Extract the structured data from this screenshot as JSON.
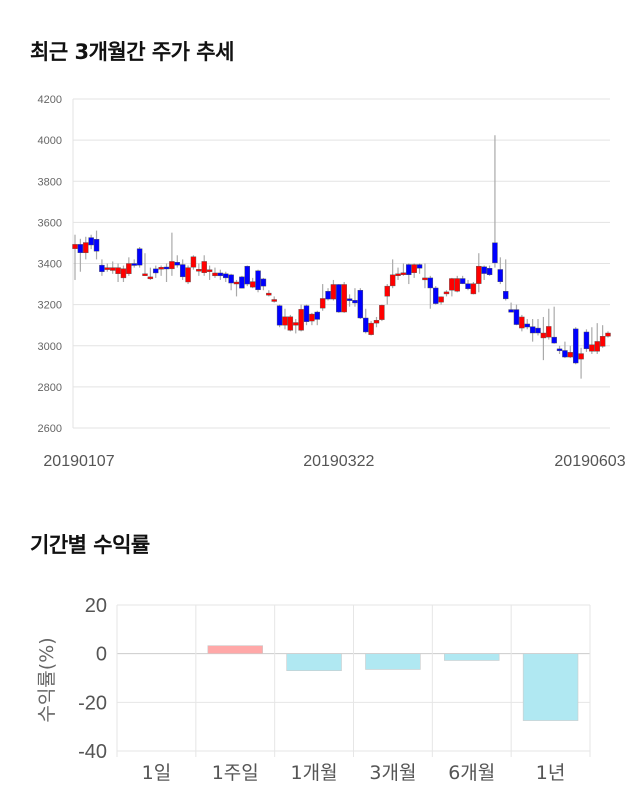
{
  "price_section": {
    "title": "최근 3개월간 주가 추세"
  },
  "returns_section": {
    "title": "기간별 수익률"
  },
  "colors": {
    "up": "#ff0000",
    "down": "#0000ff",
    "wick": "#aaaaaa",
    "bar_positive": "#ffa8a8",
    "bar_negative": "#b0e8f2",
    "grid": "#e3e3e3"
  },
  "chart_data": [
    {
      "type": "candlestick",
      "title": "최근 3개월간 주가 추세",
      "ylim": [
        2600,
        4200
      ],
      "yticks": [
        2600,
        2800,
        3000,
        3200,
        3400,
        3600,
        3800,
        4000,
        4200
      ],
      "xtick_labels": [
        "20190107",
        "20190322",
        "20190603"
      ],
      "grid": true,
      "ohlc": [
        [
          3472,
          3540,
          3320,
          3493
        ],
        [
          3493,
          3520,
          3360,
          3452
        ],
        [
          3452,
          3530,
          3420,
          3502
        ],
        [
          3526,
          3540,
          3470,
          3490
        ],
        [
          3518,
          3560,
          3420,
          3460
        ],
        [
          3392,
          3420,
          3340,
          3360
        ],
        [
          3380,
          3400,
          3360,
          3380
        ],
        [
          3366,
          3410,
          3350,
          3380
        ],
        [
          3350,
          3400,
          3310,
          3380
        ],
        [
          3330,
          3390,
          3310,
          3375
        ],
        [
          3350,
          3430,
          3340,
          3400
        ],
        [
          3400,
          3420,
          3380,
          3392
        ],
        [
          3472,
          3480,
          3380,
          3392
        ],
        [
          3350,
          3450,
          3340,
          3350
        ],
        [
          3333,
          3380,
          3320,
          3335
        ],
        [
          3374,
          3390,
          3330,
          3354
        ],
        [
          3374,
          3390,
          3340,
          3382
        ],
        [
          3383,
          3400,
          3310,
          3375
        ],
        [
          3374,
          3550,
          3340,
          3410
        ],
        [
          3406,
          3440,
          3380,
          3392
        ],
        [
          3395,
          3420,
          3320,
          3335
        ],
        [
          3310,
          3390,
          3300,
          3380
        ],
        [
          3382,
          3440,
          3370,
          3433
        ],
        [
          3370,
          3400,
          3340,
          3372
        ],
        [
          3355,
          3440,
          3340,
          3410
        ],
        [
          3360,
          3390,
          3320,
          3370
        ],
        [
          3340,
          3380,
          3330,
          3354
        ],
        [
          3354,
          3370,
          3320,
          3340
        ],
        [
          3350,
          3360,
          3310,
          3330
        ],
        [
          3345,
          3350,
          3270,
          3305
        ],
        [
          3308,
          3320,
          3240,
          3310
        ],
        [
          3335,
          3340,
          3280,
          3280
        ],
        [
          3387,
          3390,
          3290,
          3300
        ],
        [
          3285,
          3330,
          3280,
          3312
        ],
        [
          3365,
          3370,
          3260,
          3272
        ],
        [
          3325,
          3330,
          3270,
          3290
        ],
        [
          3246,
          3270,
          3240,
          3256
        ],
        [
          3225,
          3240,
          3210,
          3225
        ],
        [
          3195,
          3200,
          3090,
          3100
        ],
        [
          3100,
          3180,
          3080,
          3141
        ],
        [
          3075,
          3150,
          3070,
          3141
        ],
        [
          3100,
          3130,
          3060,
          3113
        ],
        [
          3075,
          3200,
          3070,
          3177
        ],
        [
          3195,
          3200,
          3100,
          3117
        ],
        [
          3120,
          3160,
          3100,
          3154
        ],
        [
          3164,
          3170,
          3100,
          3128
        ],
        [
          3183,
          3300,
          3170,
          3230
        ],
        [
          3265,
          3280,
          3220,
          3227
        ],
        [
          3227,
          3320,
          3220,
          3298
        ],
        [
          3298,
          3300,
          3160,
          3164
        ],
        [
          3164,
          3310,
          3160,
          3298
        ],
        [
          3229,
          3250,
          3190,
          3221
        ],
        [
          3221,
          3280,
          3190,
          3208
        ],
        [
          3270,
          3280,
          3130,
          3135
        ],
        [
          3135,
          3180,
          3060,
          3067
        ],
        [
          3054,
          3120,
          3050,
          3110
        ],
        [
          3110,
          3140,
          3090,
          3124
        ],
        [
          3127,
          3200,
          3120,
          3197
        ],
        [
          3241,
          3300,
          3200,
          3290
        ],
        [
          3291,
          3420,
          3280,
          3345
        ],
        [
          3345,
          3380,
          3320,
          3350
        ],
        [
          3350,
          3400,
          3340,
          3355
        ],
        [
          3395,
          3400,
          3300,
          3345
        ],
        [
          3355,
          3400,
          3330,
          3395
        ],
        [
          3395,
          3400,
          3350,
          3377
        ],
        [
          3322,
          3400,
          3280,
          3330
        ],
        [
          3330,
          3340,
          3180,
          3281
        ],
        [
          3281,
          3290,
          3200,
          3205
        ],
        [
          3212,
          3240,
          3200,
          3238
        ],
        [
          3252,
          3270,
          3240,
          3262
        ],
        [
          3270,
          3330,
          3240,
          3327
        ],
        [
          3265,
          3340,
          3260,
          3327
        ],
        [
          3327,
          3340,
          3300,
          3302
        ],
        [
          3302,
          3320,
          3270,
          3277
        ],
        [
          3252,
          3310,
          3250,
          3302
        ],
        [
          3302,
          3450,
          3260,
          3387
        ],
        [
          3384,
          3390,
          3320,
          3351
        ],
        [
          3377,
          3390,
          3340,
          3345
        ],
        [
          3501,
          4024,
          3380,
          3403
        ],
        [
          3371,
          3430,
          3300,
          3311
        ],
        [
          3265,
          3420,
          3220,
          3228
        ],
        [
          3176,
          3210,
          3170,
          3163
        ],
        [
          3176,
          3200,
          3100,
          3103
        ],
        [
          3086,
          3150,
          3070,
          3140
        ],
        [
          3106,
          3130,
          3080,
          3091
        ],
        [
          3093,
          3130,
          3020,
          3062
        ],
        [
          3086,
          3130,
          3050,
          3062
        ],
        [
          3038,
          3140,
          2930,
          3062
        ],
        [
          3042,
          3180,
          3030,
          3094
        ],
        [
          3042,
          3190,
          3010,
          3013
        ],
        [
          2985,
          3000,
          2960,
          2977
        ],
        [
          2977,
          3020,
          2940,
          2945
        ],
        [
          2945,
          3000,
          2940,
          2968
        ],
        [
          3082,
          3090,
          2910,
          2916
        ],
        [
          2935,
          2990,
          2840,
          2962
        ],
        [
          3067,
          3080,
          2970,
          2985
        ],
        [
          2973,
          3090,
          2960,
          3005
        ],
        [
          2973,
          3110,
          2960,
          3021
        ],
        [
          2997,
          3100,
          2990,
          3046
        ],
        [
          3046,
          3070,
          3040,
          3062
        ]
      ]
    },
    {
      "type": "bar",
      "title": "기간별 수익률",
      "ylabel": "수익률(%)",
      "categories": [
        "1일",
        "1주일",
        "1개월",
        "3개월",
        "6개월",
        "1년"
      ],
      "values": [
        0,
        3.3,
        -7.0,
        -6.5,
        -2.8,
        -27.5
      ],
      "ylim": [
        -40,
        20
      ],
      "yticks": [
        -40,
        -20,
        0,
        20
      ],
      "grid": true
    }
  ]
}
